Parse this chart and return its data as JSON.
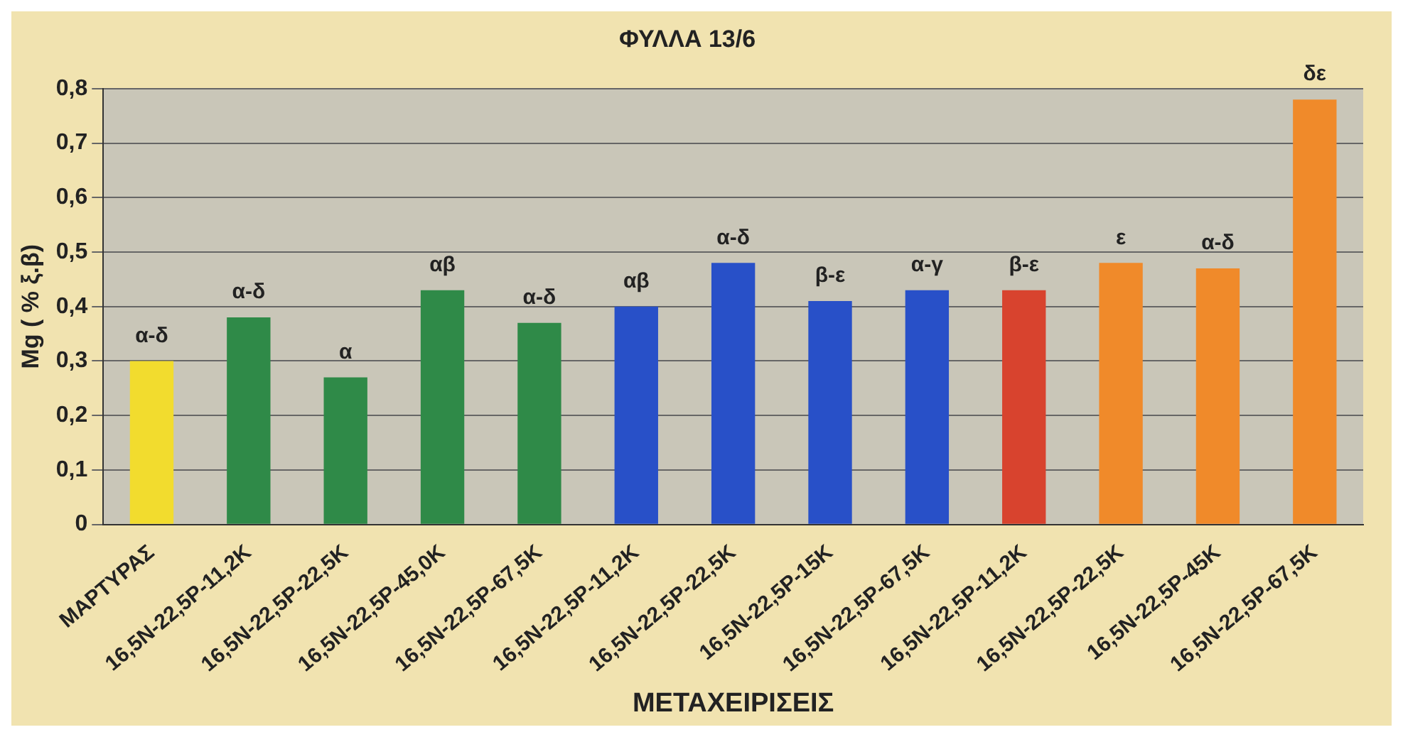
{
  "chart_data": {
    "type": "bar",
    "title": "ΦΥΛΛΑ 13/6",
    "xlabel": "ΜΕΤΑΧΕΙΡΙΣΕΙΣ",
    "ylabel": "Mg ( % ξ.β)",
    "categories": [
      "ΜΑΡΤΥΡΑΣ",
      "16,5N-22,5P-11,2K",
      "16,5N-22,5P-22,5K",
      "16,5N-22,5P-45,0K",
      "16,5N-22,5P-67,5K",
      "16,5N-22,5P-11,2K",
      "16,5N-22,5P-22,5K",
      "16,5N-22,5P-15K",
      "16,5N-22,5P-67,5K",
      "16,5N-22,5P-11,2K",
      "16,5N-22,5P-22,5K",
      "16,5N-22,5P-45K",
      "16,5N-22,5P-67,5K"
    ],
    "values": [
      0.3,
      0.38,
      0.27,
      0.43,
      0.37,
      0.4,
      0.48,
      0.41,
      0.43,
      0.43,
      0.48,
      0.47,
      0.78
    ],
    "colors": [
      "#f2dc2e",
      "#2f8a48",
      "#2f8a48",
      "#2f8a48",
      "#2f8a48",
      "#2850c8",
      "#2850c8",
      "#2850c8",
      "#2850c8",
      "#d8432e",
      "#f08a2a",
      "#f08a2a",
      "#f08a2a"
    ],
    "ylim": [
      0,
      0.8
    ],
    "yticks": [
      {
        "value": 0,
        "label": "0"
      },
      {
        "value": 0.1,
        "label": "0,1"
      },
      {
        "value": 0.2,
        "label": "0,2"
      },
      {
        "value": 0.3,
        "label": "0,3"
      },
      {
        "value": 0.4,
        "label": "0,4"
      },
      {
        "value": 0.5,
        "label": "0,5"
      },
      {
        "value": 0.6,
        "label": "0,6"
      },
      {
        "value": 0.7,
        "label": "0,7"
      },
      {
        "value": 0.8,
        "label": "0,8"
      }
    ],
    "grid": "y",
    "value_labels": [
      "α-δ",
      "α-δ",
      "α",
      "αβ",
      "α-δ",
      "αβ",
      "α-δ",
      "β-ε",
      "α-γ",
      "β-ε",
      "ε",
      "α-δ",
      "δε"
    ]
  }
}
